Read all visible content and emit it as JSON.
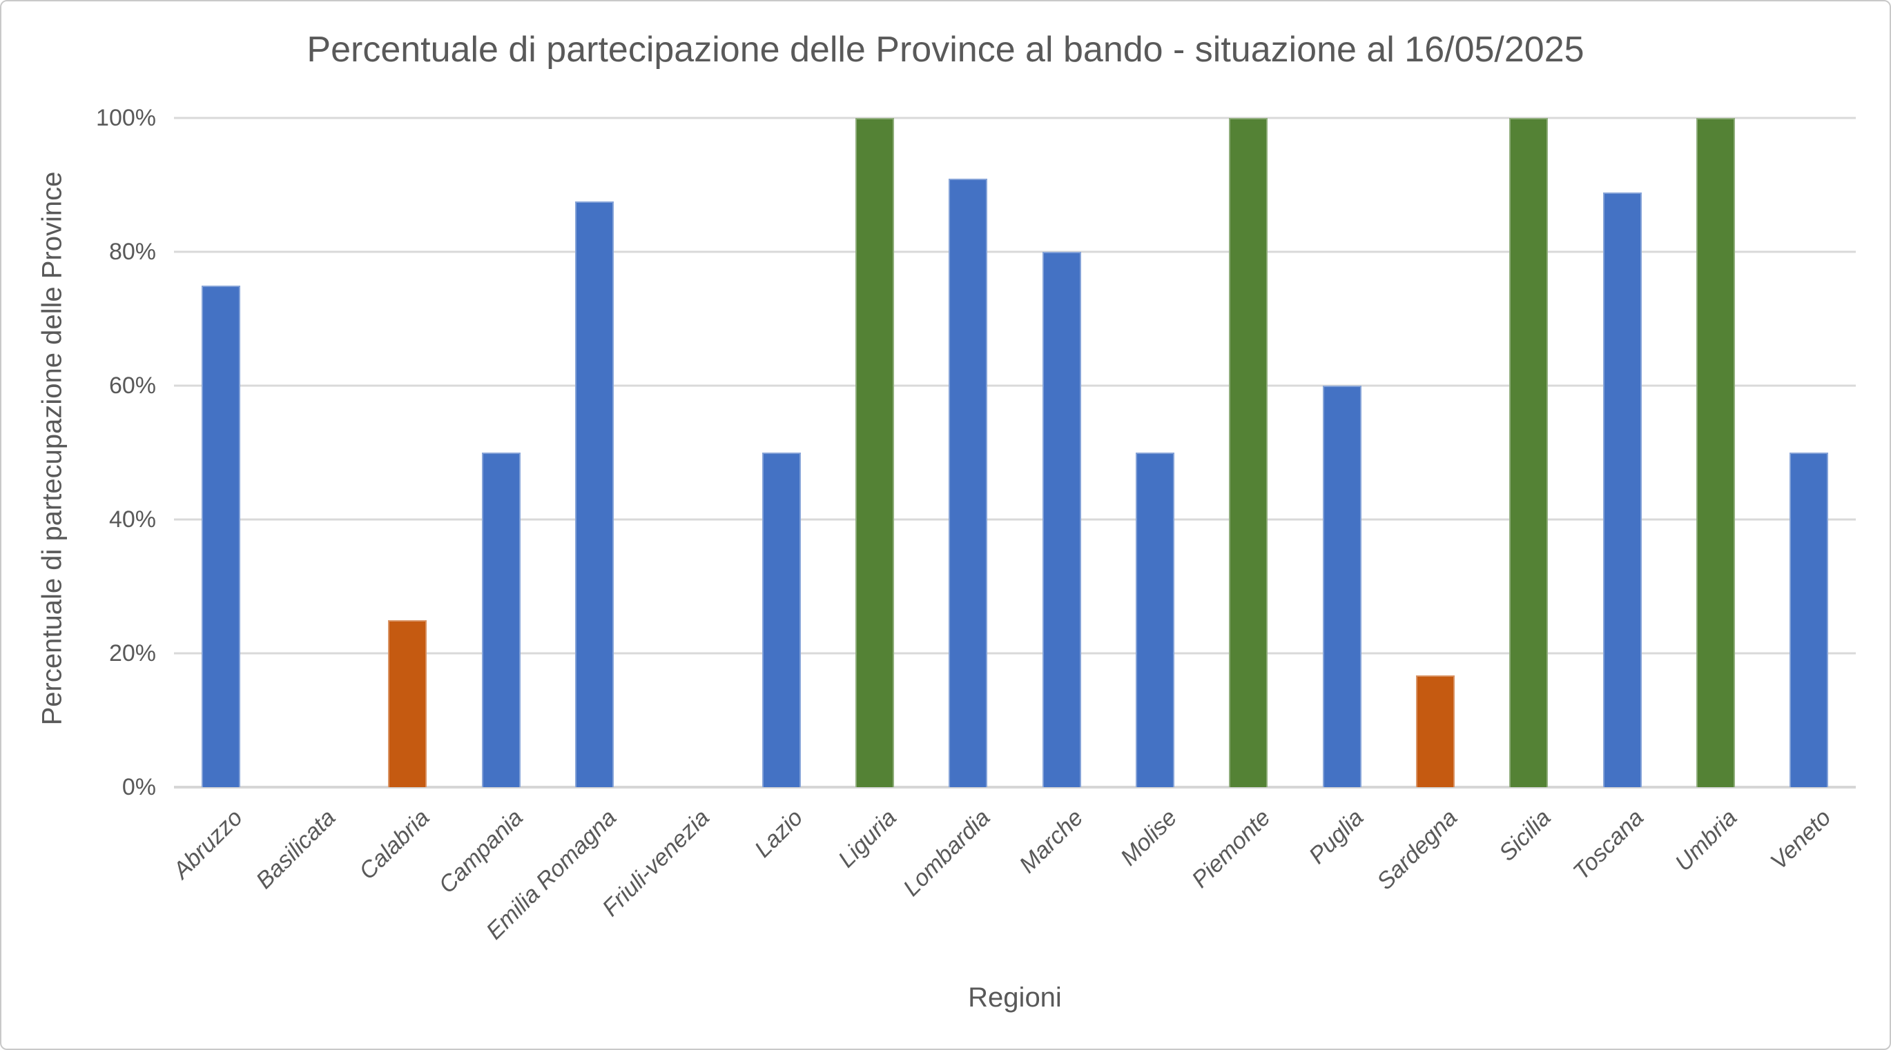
{
  "chart_data": {
    "type": "bar",
    "title": "Percentuale di partecipazione delle Province al bando - situazione al 16/05/2025",
    "xlabel": "Regioni",
    "ylabel": "Percentuale  di partecupazione delle Province",
    "ylim": [
      0,
      100
    ],
    "yticks": [
      "0%",
      "20%",
      "40%",
      "60%",
      "80%",
      "100%"
    ],
    "ytick_values": [
      0,
      20,
      40,
      60,
      80,
      100
    ],
    "grid": true,
    "legend": false,
    "categories": [
      "Abruzzo",
      "Basilicata",
      "Calabria",
      "Campania",
      "Emilia Romagna",
      "Friuli-venezia",
      "Lazio",
      "Liguria",
      "Lombardia",
      "Marche",
      "Molise",
      "Piemonte",
      "Puglia",
      "Sardegna",
      "Sicilia",
      "Toscana",
      "Umbria",
      "Veneto"
    ],
    "values": [
      75,
      0,
      25,
      50,
      87.5,
      0,
      50,
      100,
      90.9,
      80,
      50,
      100,
      60,
      16.7,
      100,
      88.9,
      100,
      50
    ],
    "bar_colors": [
      "#4472C4",
      "#4472C4",
      "#C55A11",
      "#4472C4",
      "#4472C4",
      "#4472C4",
      "#4472C4",
      "#548235",
      "#4472C4",
      "#4472C4",
      "#4472C4",
      "#548235",
      "#4472C4",
      "#C55A11",
      "#548235",
      "#4472C4",
      "#548235",
      "#4472C4"
    ],
    "colors": {
      "blue": "#4472C4",
      "orange": "#C55A11",
      "green": "#548235",
      "gridline": "#D9D9D9",
      "text": "#595959"
    }
  }
}
